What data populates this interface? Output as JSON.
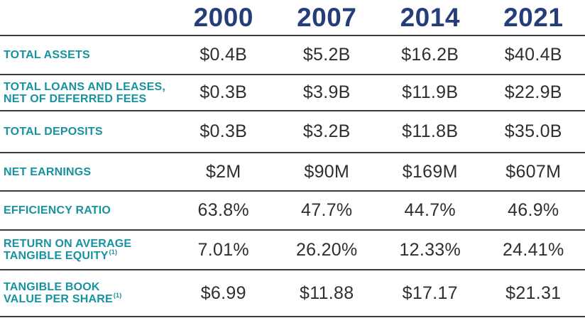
{
  "colors": {
    "year_header_navy": "#253D78",
    "row_label_teal": "#17929F",
    "value_text_gray": "#2E2F30",
    "rule_line": "#3B3B3B",
    "background": "#FFFFFF"
  },
  "chart_data": {
    "type": "table",
    "title": "",
    "columns": [
      "2000",
      "2007",
      "2014",
      "2021"
    ],
    "rows": [
      {
        "label": "TOTAL ASSETS",
        "label_lines": [
          "TOTAL ASSETS"
        ],
        "footnote_marker": "",
        "values": [
          "$0.4B",
          "$5.2B",
          "$16.2B",
          "$40.4B"
        ]
      },
      {
        "label": "TOTAL LOANS AND LEASES, NET OF DEFERRED FEES",
        "label_lines": [
          "TOTAL LOANS AND LEASES,",
          "NET OF DEFERRED FEES"
        ],
        "footnote_marker": "",
        "values": [
          "$0.3B",
          "$3.9B",
          "$11.9B",
          "$22.9B"
        ]
      },
      {
        "label": "TOTAL DEPOSITS",
        "label_lines": [
          "TOTAL DEPOSITS"
        ],
        "footnote_marker": "",
        "values": [
          "$0.3B",
          "$3.2B",
          "$11.8B",
          "$35.0B"
        ]
      },
      {
        "label": "NET EARNINGS",
        "label_lines": [
          "NET EARNINGS"
        ],
        "footnote_marker": "",
        "values": [
          "$2M",
          "$90M",
          "$169M",
          "$607M"
        ]
      },
      {
        "label": "EFFICIENCY RATIO",
        "label_lines": [
          "EFFICIENCY RATIO"
        ],
        "footnote_marker": "",
        "values": [
          "63.8%",
          "47.7%",
          "44.7%",
          "46.9%"
        ]
      },
      {
        "label": "RETURN ON AVERAGE TANGIBLE EQUITY",
        "label_lines": [
          "RETURN ON AVERAGE",
          "TANGIBLE EQUITY"
        ],
        "footnote_marker": "(1)",
        "values": [
          "7.01%",
          "26.20%",
          "12.33%",
          "24.41%"
        ]
      },
      {
        "label": "TANGIBLE BOOK VALUE PER SHARE",
        "label_lines": [
          "TANGIBLE BOOK",
          "VALUE PER SHARE"
        ],
        "footnote_marker": "(1)",
        "values": [
          "$6.99",
          "$11.88",
          "$17.17",
          "$21.31"
        ]
      }
    ]
  }
}
